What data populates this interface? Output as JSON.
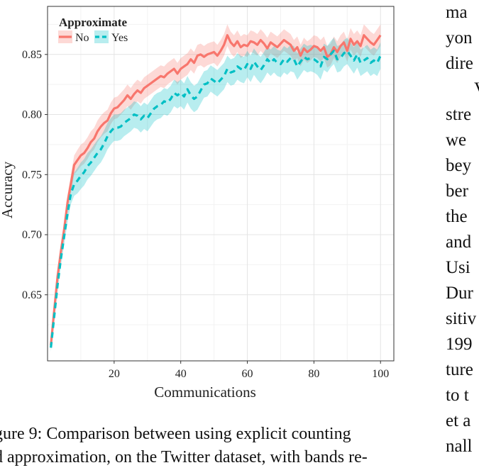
{
  "chart_data": {
    "type": "line",
    "xlabel": "Communications",
    "ylabel": "Accuracy",
    "xlim": [
      0,
      104
    ],
    "ylim": [
      0.595,
      0.89
    ],
    "xticks": [
      20,
      40,
      60,
      80,
      100
    ],
    "yticks": [
      0.65,
      0.7,
      0.75,
      0.8,
      0.85
    ],
    "ytick_labels": [
      "0.65",
      "0.70",
      "0.75",
      "0.80",
      "0.85"
    ],
    "grid": true,
    "legend": {
      "title": "Approximate",
      "position": "top-left"
    },
    "series": [
      {
        "name": "No",
        "color": "#f8766d",
        "band_color": "#f8766d",
        "style": "solid",
        "x": [
          1,
          2,
          3,
          4,
          5,
          6,
          7,
          8,
          9,
          10,
          11,
          12,
          13,
          14,
          15,
          16,
          17,
          18,
          19,
          20,
          21,
          22,
          23,
          24,
          25,
          26,
          27,
          28,
          29,
          30,
          31,
          32,
          33,
          34,
          35,
          36,
          37,
          38,
          39,
          40,
          41,
          42,
          43,
          44,
          45,
          46,
          47,
          48,
          49,
          50,
          51,
          52,
          53,
          54,
          55,
          56,
          57,
          58,
          59,
          60,
          61,
          62,
          63,
          64,
          65,
          66,
          67,
          68,
          69,
          70,
          71,
          72,
          73,
          74,
          75,
          76,
          77,
          78,
          79,
          80,
          81,
          82,
          83,
          84,
          85,
          86,
          87,
          88,
          89,
          90,
          91,
          92,
          93,
          94,
          95,
          96,
          97,
          98,
          99,
          100
        ],
        "y": [
          0.608,
          0.637,
          0.665,
          0.686,
          0.705,
          0.727,
          0.742,
          0.758,
          0.762,
          0.766,
          0.768,
          0.772,
          0.777,
          0.78,
          0.786,
          0.79,
          0.793,
          0.795,
          0.801,
          0.805,
          0.806,
          0.809,
          0.812,
          0.816,
          0.813,
          0.817,
          0.82,
          0.818,
          0.822,
          0.824,
          0.826,
          0.828,
          0.83,
          0.832,
          0.831,
          0.834,
          0.836,
          0.838,
          0.834,
          0.838,
          0.84,
          0.842,
          0.846,
          0.843,
          0.849,
          0.85,
          0.848,
          0.85,
          0.851,
          0.852,
          0.849,
          0.853,
          0.858,
          0.866,
          0.86,
          0.857,
          0.861,
          0.856,
          0.858,
          0.857,
          0.861,
          0.86,
          0.858,
          0.862,
          0.859,
          0.855,
          0.86,
          0.858,
          0.856,
          0.859,
          0.862,
          0.86,
          0.858,
          0.853,
          0.856,
          0.849,
          0.855,
          0.852,
          0.854,
          0.857,
          0.856,
          0.853,
          0.856,
          0.848,
          0.85,
          0.856,
          0.852,
          0.857,
          0.86,
          0.853,
          0.863,
          0.858,
          0.861,
          0.857,
          0.866,
          0.863,
          0.86,
          0.858,
          0.862,
          0.866
        ],
        "band_halfwidth": 0.009
      },
      {
        "name": "Yes",
        "color": "#00bfc4",
        "band_color": "#00bfc4",
        "style": "dashed",
        "x": [
          1,
          2,
          3,
          4,
          5,
          6,
          7,
          8,
          9,
          10,
          11,
          12,
          13,
          14,
          15,
          16,
          17,
          18,
          19,
          20,
          21,
          22,
          23,
          24,
          25,
          26,
          27,
          28,
          29,
          30,
          31,
          32,
          33,
          34,
          35,
          36,
          37,
          38,
          39,
          40,
          41,
          42,
          43,
          44,
          45,
          46,
          47,
          48,
          49,
          50,
          51,
          52,
          53,
          54,
          55,
          56,
          57,
          58,
          59,
          60,
          61,
          62,
          63,
          64,
          65,
          66,
          67,
          68,
          69,
          70,
          71,
          72,
          73,
          74,
          75,
          76,
          77,
          78,
          79,
          80,
          81,
          82,
          83,
          84,
          85,
          86,
          87,
          88,
          89,
          90,
          91,
          92,
          93,
          94,
          95,
          96,
          97,
          98,
          99,
          100
        ],
        "y": [
          0.606,
          0.632,
          0.658,
          0.68,
          0.699,
          0.718,
          0.734,
          0.742,
          0.745,
          0.749,
          0.752,
          0.757,
          0.76,
          0.764,
          0.768,
          0.771,
          0.776,
          0.782,
          0.786,
          0.789,
          0.789,
          0.79,
          0.793,
          0.795,
          0.797,
          0.8,
          0.799,
          0.796,
          0.799,
          0.797,
          0.801,
          0.805,
          0.807,
          0.808,
          0.811,
          0.81,
          0.813,
          0.818,
          0.816,
          0.818,
          0.815,
          0.821,
          0.816,
          0.813,
          0.815,
          0.82,
          0.825,
          0.826,
          0.83,
          0.828,
          0.826,
          0.829,
          0.832,
          0.838,
          0.835,
          0.836,
          0.84,
          0.838,
          0.837,
          0.842,
          0.838,
          0.844,
          0.84,
          0.837,
          0.841,
          0.846,
          0.843,
          0.846,
          0.843,
          0.842,
          0.846,
          0.844,
          0.847,
          0.846,
          0.84,
          0.844,
          0.848,
          0.846,
          0.847,
          0.846,
          0.844,
          0.84,
          0.848,
          0.846,
          0.85,
          0.853,
          0.846,
          0.847,
          0.851,
          0.853,
          0.849,
          0.845,
          0.85,
          0.843,
          0.845,
          0.847,
          0.843,
          0.845,
          0.843,
          0.849
        ],
        "band_halfwidth": 0.011
      }
    ]
  },
  "caption": {
    "line1": "gure 9: Comparison between using explicit counting",
    "line2": "d approximation, on the Twitter dataset, with bands re-"
  },
  "side_text": [
    "ma",
    "yon",
    "dire",
    "V",
    "stre",
    "we",
    "bey",
    "ber",
    "the",
    "and",
    "Usi",
    "Dur",
    "sitiv",
    "199",
    "ture",
    "to t",
    "et a",
    "nall"
  ]
}
